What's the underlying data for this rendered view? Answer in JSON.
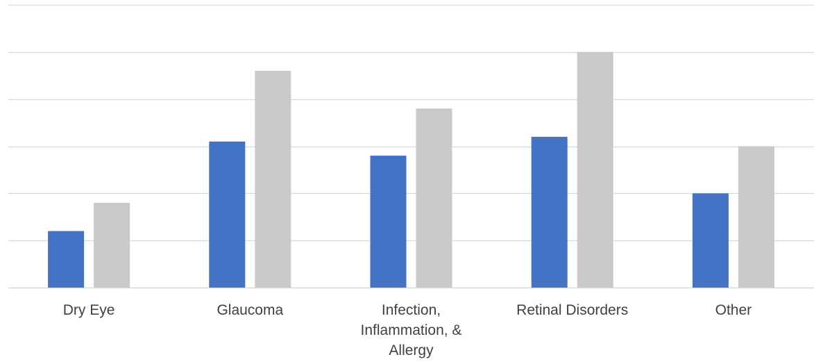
{
  "chart_data": {
    "type": "bar",
    "categories": [
      [
        "Dry Eye"
      ],
      [
        "Glaucoma"
      ],
      [
        "Infection,",
        "Inflammation, &",
        "Allergy"
      ],
      [
        "Retinal Disorders"
      ],
      [
        "Other"
      ]
    ],
    "series": [
      {
        "values": [
          1.2,
          3.1,
          2.8,
          3.2,
          2.0
        ],
        "color": "#4472C4"
      },
      {
        "values": [
          1.8,
          4.6,
          3.8,
          5.0,
          3.0
        ],
        "color": "#C9C9C9"
      }
    ],
    "ylim": [
      0,
      6
    ],
    "gridlines": true,
    "legend": false,
    "title": "",
    "xlabel": "",
    "ylabel": ""
  }
}
